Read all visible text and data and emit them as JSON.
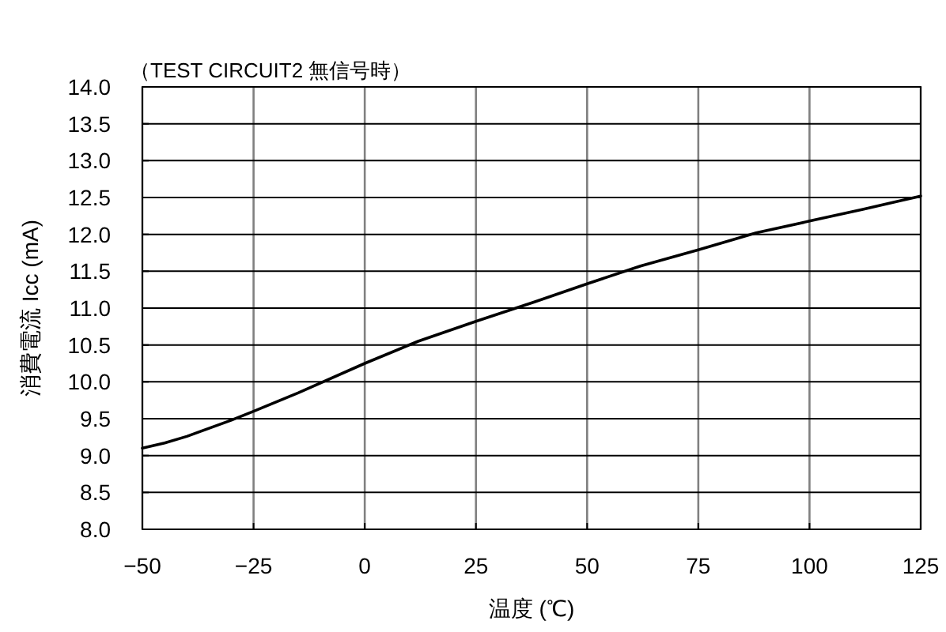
{
  "chart_data": {
    "type": "line",
    "title": "（TEST CIRCUIT2 無信号時）",
    "xlabel": "温度 (℃)",
    "ylabel": "消費電流 Icc (mA)",
    "x": [
      -50,
      -45,
      -40,
      -30,
      -25,
      -15,
      0,
      12,
      25,
      38,
      50,
      62,
      75,
      88,
      100,
      112,
      125
    ],
    "series": [
      {
        "color": "#000000",
        "values": [
          9.1,
          9.17,
          9.26,
          9.48,
          9.6,
          9.85,
          10.25,
          10.55,
          10.82,
          11.08,
          11.33,
          11.57,
          11.79,
          12.02,
          12.18,
          12.34,
          12.52
        ]
      }
    ],
    "xlim": [
      -50,
      125
    ],
    "ylim": [
      8,
      14
    ],
    "xticks": [
      {
        "value": -50,
        "label": "−50"
      },
      {
        "value": -25,
        "label": "−25"
      },
      0,
      25,
      50,
      75,
      100,
      125
    ],
    "yticks": [
      {
        "value": 8,
        "label": "8.0"
      },
      {
        "value": 8.5,
        "label": "8.5"
      },
      {
        "value": 9,
        "label": "9.0"
      },
      {
        "value": 9.5,
        "label": "9.5"
      },
      {
        "value": 10,
        "label": "10.0"
      },
      {
        "value": 10.5,
        "label": "10.5"
      },
      {
        "value": 11,
        "label": "11.0"
      },
      {
        "value": 11.5,
        "label": "11.5"
      },
      {
        "value": 12,
        "label": "12.0"
      },
      {
        "value": 12.5,
        "label": "12.5"
      },
      {
        "value": 13,
        "label": "13.0"
      },
      {
        "value": 13.5,
        "label": "13.5"
      },
      {
        "value": 14,
        "label": "14.0"
      }
    ],
    "grid": true
  }
}
